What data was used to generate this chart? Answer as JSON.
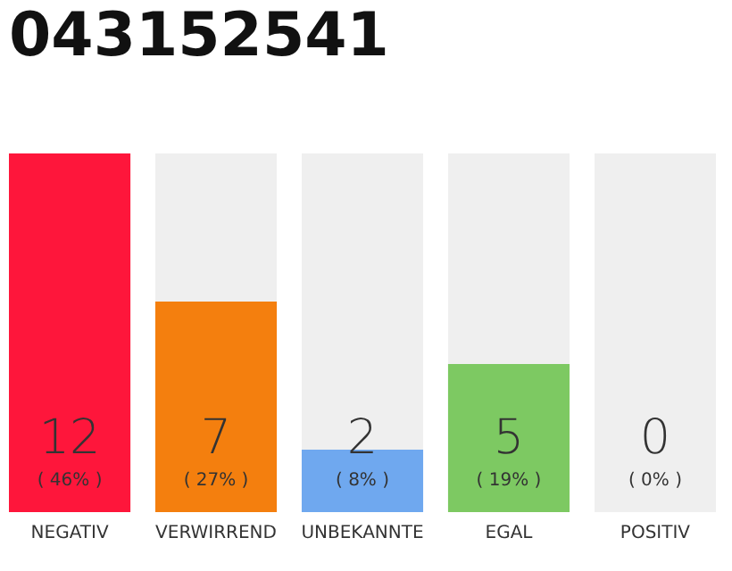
{
  "chart_data": {
    "type": "bar",
    "title": "043152541",
    "categories": [
      "NEGATIV",
      "VERWIRREND",
      "UNBEKANNTE",
      "EGAL",
      "POSITIV"
    ],
    "values": [
      46,
      27,
      8,
      19,
      0
    ],
    "colors": [
      "#fe163b",
      "#f47f0e",
      "#6fa8ef",
      "#7dc962",
      "#cccccc"
    ],
    "value_labels": [
      "( 46% )",
      "( 27% )",
      "( 8% )",
      "( 19% )",
      "( 0% )"
    ],
    "tick_labels": "x",
    "annotations": [
      {
        "text": "12",
        "x": "NEGATIV",
        "y": 0
      },
      {
        "text": "7",
        "x": "VERWIRREND",
        "y": 0
      },
      {
        "text": "2",
        "x": "UNBEKANNTE",
        "y": 0
      },
      {
        "text": "5",
        "x": "EGAL",
        "y": 0
      },
      {
        "text": "0",
        "x": "POSITIV",
        "y": 0
      }
    ]
  }
}
